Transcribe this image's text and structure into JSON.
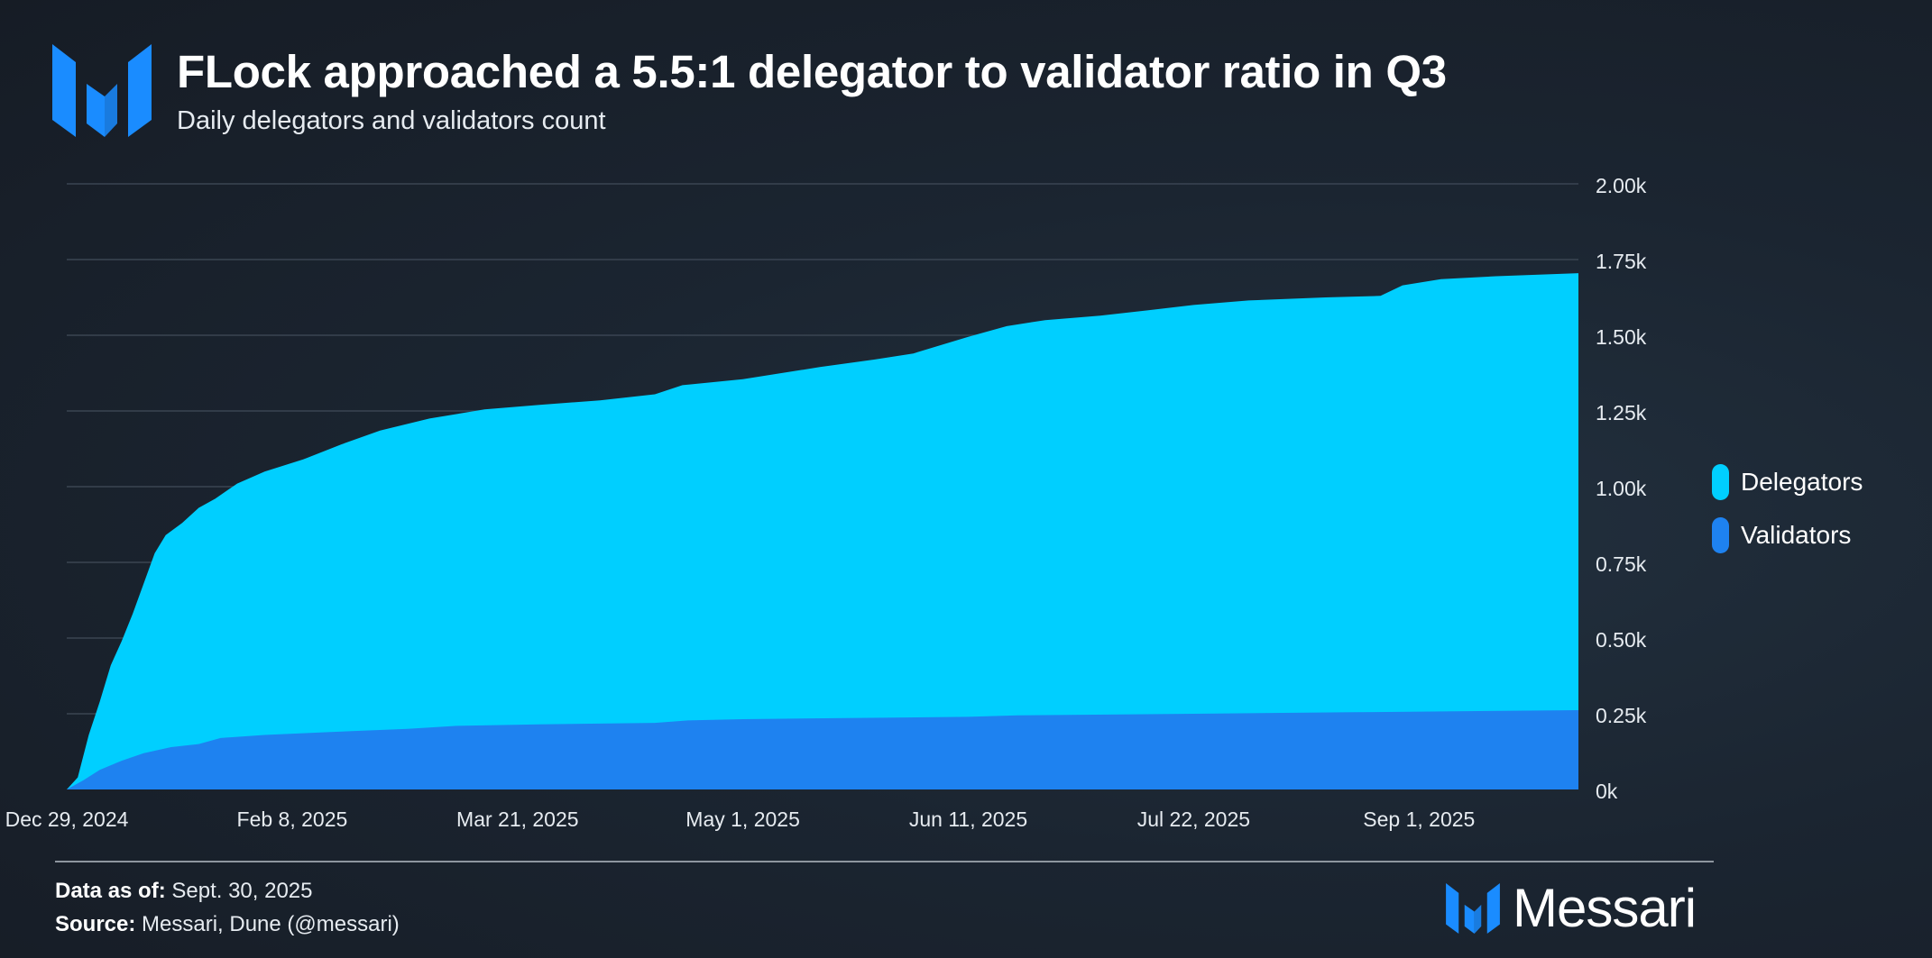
{
  "header": {
    "title": "FLock approached a 5.5:1 delegator to validator ratio in Q3",
    "subtitle": "Daily delegators and validators count"
  },
  "colors": {
    "delegators": "#00cfff",
    "validators": "#1e82f0",
    "grid": "#3a4552",
    "brand_blue": "#1a8cff"
  },
  "chart_data": {
    "type": "area",
    "title": "FLock approached a 5.5:1 delegator to validator ratio in Q3",
    "subtitle": "Daily delegators and validators count",
    "xlabel": "",
    "ylabel": "",
    "x_range": [
      "2024-12-29",
      "2025-09-30"
    ],
    "x_ticks": [
      "Dec 29, 2024",
      "Feb 8, 2025",
      "Mar 21, 2025",
      "May 1, 2025",
      "Jun 11, 2025",
      "Jul 22, 2025",
      "Sep 1, 2025"
    ],
    "y_ticks": [
      "0k",
      "0.25k",
      "0.50k",
      "0.75k",
      "1.00k",
      "1.25k",
      "1.50k",
      "1.75k",
      "2.00k"
    ],
    "ylim": [
      0,
      2000
    ],
    "y_axis_position": "right",
    "grid": true,
    "legend_position": "right",
    "stacked": false,
    "series": [
      {
        "name": "Delegators",
        "points": [
          [
            "2024-12-29",
            0
          ],
          [
            "2024-12-31",
            40
          ],
          [
            "2025-01-02",
            180
          ],
          [
            "2025-01-04",
            290
          ],
          [
            "2025-01-06",
            410
          ],
          [
            "2025-01-08",
            490
          ],
          [
            "2025-01-10",
            580
          ],
          [
            "2025-01-12",
            680
          ],
          [
            "2025-01-14",
            780
          ],
          [
            "2025-01-16",
            840
          ],
          [
            "2025-01-19",
            880
          ],
          [
            "2025-01-22",
            930
          ],
          [
            "2025-01-25",
            960
          ],
          [
            "2025-01-29",
            1010
          ],
          [
            "2025-02-03",
            1050
          ],
          [
            "2025-02-10",
            1090
          ],
          [
            "2025-02-17",
            1140
          ],
          [
            "2025-02-24",
            1185
          ],
          [
            "2025-03-05",
            1225
          ],
          [
            "2025-03-15",
            1255
          ],
          [
            "2025-03-25",
            1270
          ],
          [
            "2025-04-05",
            1285
          ],
          [
            "2025-04-15",
            1305
          ],
          [
            "2025-04-20",
            1335
          ],
          [
            "2025-05-01",
            1355
          ],
          [
            "2025-05-15",
            1395
          ],
          [
            "2025-05-25",
            1420
          ],
          [
            "2025-06-01",
            1440
          ],
          [
            "2025-06-11",
            1495
          ],
          [
            "2025-06-18",
            1530
          ],
          [
            "2025-06-25",
            1550
          ],
          [
            "2025-07-05",
            1565
          ],
          [
            "2025-07-15",
            1585
          ],
          [
            "2025-07-22",
            1600
          ],
          [
            "2025-08-01",
            1615
          ],
          [
            "2025-08-15",
            1625
          ],
          [
            "2025-08-25",
            1630
          ],
          [
            "2025-08-29",
            1665
          ],
          [
            "2025-09-05",
            1685
          ],
          [
            "2025-09-15",
            1695
          ],
          [
            "2025-09-30",
            1705
          ]
        ]
      },
      {
        "name": "Validators",
        "points": [
          [
            "2024-12-29",
            0
          ],
          [
            "2025-01-01",
            30
          ],
          [
            "2025-01-04",
            65
          ],
          [
            "2025-01-08",
            95
          ],
          [
            "2025-01-12",
            120
          ],
          [
            "2025-01-17",
            140
          ],
          [
            "2025-01-22",
            150
          ],
          [
            "2025-01-26",
            170
          ],
          [
            "2025-02-03",
            180
          ],
          [
            "2025-02-15",
            190
          ],
          [
            "2025-03-01",
            200
          ],
          [
            "2025-03-10",
            210
          ],
          [
            "2025-03-25",
            215
          ],
          [
            "2025-04-15",
            220
          ],
          [
            "2025-04-21",
            228
          ],
          [
            "2025-05-01",
            232
          ],
          [
            "2025-05-20",
            236
          ],
          [
            "2025-06-11",
            240
          ],
          [
            "2025-06-20",
            245
          ],
          [
            "2025-07-22",
            250
          ],
          [
            "2025-08-20",
            255
          ],
          [
            "2025-09-30",
            262
          ]
        ]
      }
    ]
  },
  "legend": {
    "items": [
      {
        "label": "Delegators"
      },
      {
        "label": "Validators"
      }
    ]
  },
  "footer": {
    "data_as_of_label": "Data as of:",
    "data_as_of_value": " Sept. 30, 2025",
    "source_label": "Source:",
    "source_value": " Messari, Dune (@messari)",
    "brand": "Messari"
  }
}
